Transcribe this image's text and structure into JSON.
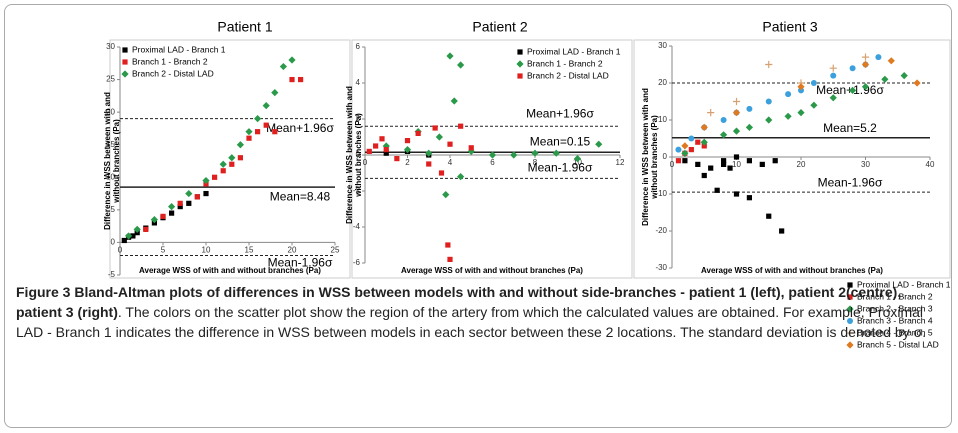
{
  "chart_data": [
    {
      "type": "scatter",
      "title": "Patient 1",
      "x_label": "Average WSS of with and without branches (Pa)",
      "y_label": [
        "Difference in WSS between with and",
        "without branches (Pa)"
      ],
      "xlim": [
        0,
        25
      ],
      "xticks": [
        0,
        5,
        10,
        15,
        20,
        25
      ],
      "ylim": [
        -5,
        30
      ],
      "yticks": [
        -5,
        0,
        5,
        10,
        15,
        20,
        25,
        30
      ],
      "reference_lines": [
        {
          "label": "Mean+1.96σ",
          "value": 19,
          "style": "dashed"
        },
        {
          "label": "Mean=8.48",
          "value": 8.48,
          "style": "solid"
        },
        {
          "label": "Mean-1.96σ",
          "value": -2,
          "style": "dashed"
        }
      ],
      "series": [
        {
          "name": "Proximal LAD - Branch 1",
          "color": "#000000",
          "marker": "square",
          "x": [
            0.5,
            1,
            1.5,
            2,
            3,
            4,
            5,
            6,
            7,
            8,
            9,
            10
          ],
          "values": [
            0.3,
            0.8,
            1,
            1.5,
            2.2,
            3,
            3.8,
            4.5,
            5.5,
            6,
            7,
            7.5
          ]
        },
        {
          "name": "Branch 1 - Branch 2",
          "color": "#e0201f",
          "marker": "square",
          "x": [
            3,
            5,
            7,
            9,
            10,
            11,
            12,
            13,
            14,
            15,
            16,
            17,
            18,
            20,
            21
          ],
          "values": [
            2,
            4,
            6,
            7,
            9,
            10,
            11,
            12,
            13,
            16,
            17,
            18,
            17,
            25,
            25
          ]
        },
        {
          "name": "Branch 2 - Distal LAD",
          "color": "#2a9a4a",
          "marker": "diamond",
          "x": [
            1,
            2,
            4,
            6,
            8,
            10,
            12,
            13,
            14,
            15,
            16,
            17,
            18,
            19,
            20
          ],
          "values": [
            1,
            2,
            3.5,
            5.5,
            7.5,
            9.5,
            12,
            13,
            15,
            17,
            19,
            21,
            23,
            27,
            28
          ]
        }
      ]
    },
    {
      "type": "scatter",
      "title": "Patient 2",
      "x_label": "Average WSS of with and without branches (Pa)",
      "y_label": [
        "Difference in WSS between with and",
        "without branches (Pa)"
      ],
      "xlim": [
        0,
        12
      ],
      "xticks": [
        0,
        2,
        4,
        6,
        8,
        10,
        12
      ],
      "ylim": [
        -6,
        6
      ],
      "yticks": [
        -6,
        -4,
        -2,
        0,
        2,
        4,
        6
      ],
      "reference_lines": [
        {
          "label": "Mean+1.96σ",
          "value": 1.6,
          "style": "dashed"
        },
        {
          "label": "Mean=0.15",
          "value": 0.15,
          "style": "solid"
        },
        {
          "label": "Mean-1.96σ",
          "value": -1.3,
          "style": "dashed"
        }
      ],
      "series": [
        {
          "name": "Proximal LAD - Branch 1",
          "color": "#000000",
          "marker": "square",
          "x": [
            1,
            2,
            3
          ],
          "values": [
            0.1,
            0.2,
            0
          ]
        },
        {
          "name": "Branch 1 - Branch 2",
          "color": "#2a9a4a",
          "marker": "diamond",
          "x": [
            1,
            2,
            3,
            3.5,
            4,
            4.5,
            5,
            6,
            7,
            8,
            9,
            10,
            11,
            3.8,
            4.2,
            4.5,
            2.5
          ],
          "values": [
            0.5,
            0.3,
            0.1,
            1,
            5.5,
            5,
            0.2,
            0,
            0,
            0.1,
            0.1,
            -0.2,
            0.6,
            -2.2,
            3,
            -1.2,
            1.3
          ]
        },
        {
          "name": "Branch 2 - Distal LAD",
          "color": "#e0201f",
          "marker": "square",
          "x": [
            0.2,
            0.5,
            0.8,
            1,
            1.5,
            2,
            2.5,
            3,
            3.3,
            3.6,
            4,
            4.5,
            5,
            3.9,
            4
          ],
          "values": [
            0.2,
            0.5,
            0.9,
            0.3,
            -0.2,
            0.8,
            1.2,
            -0.5,
            1.5,
            -1,
            0.6,
            1.6,
            0.4,
            -5,
            -5.8
          ]
        }
      ]
    },
    {
      "type": "scatter",
      "title": "Patient 3",
      "x_label": "Average WSS of with and without branches (Pa)",
      "y_label": [
        "Difference in WSS between with and",
        "without branches (Pa)"
      ],
      "xlim": [
        0,
        40
      ],
      "xticks": [
        0,
        10,
        20,
        30,
        40
      ],
      "ylim": [
        -30,
        30
      ],
      "yticks": [
        -30,
        -20,
        -10,
        0,
        10,
        20,
        30
      ],
      "reference_lines": [
        {
          "label": "Mean+1.96σ",
          "value": 20,
          "style": "dashed"
        },
        {
          "label": "Mean=5.2",
          "value": 5.2,
          "style": "solid"
        },
        {
          "label": "Mean-1.96σ",
          "value": -9.5,
          "style": "dashed"
        }
      ],
      "series": [
        {
          "name": "Proximal LAD - Branch 1",
          "color": "#000000",
          "marker": "square",
          "x": [
            2,
            4,
            6,
            8,
            10,
            12,
            14,
            16,
            5,
            7,
            10,
            12,
            15,
            17,
            8,
            9
          ],
          "values": [
            -1,
            -2,
            -3,
            -1,
            0,
            -1,
            -2,
            -1,
            -5,
            -9,
            -10,
            -11,
            -16,
            -20,
            -2,
            -3
          ]
        },
        {
          "name": "Branch 1 - Branch 2",
          "color": "#e0201f",
          "marker": "square",
          "x": [
            1,
            2,
            3,
            4,
            5
          ],
          "values": [
            -1,
            1,
            2,
            4,
            3
          ]
        },
        {
          "name": "Branch 2 - Branch 3",
          "color": "#2a9a4a",
          "marker": "diamond",
          "x": [
            2,
            5,
            8,
            10,
            12,
            15,
            18,
            20,
            22,
            25,
            28,
            30,
            33,
            36
          ],
          "values": [
            1,
            4,
            6,
            7,
            8,
            10,
            11,
            12,
            14,
            16,
            18,
            19,
            21,
            22
          ]
        },
        {
          "name": "Branch 3 - Branch 4",
          "color": "#3ba0dc",
          "marker": "circle",
          "x": [
            1,
            3,
            5,
            8,
            10,
            12,
            15,
            18,
            20,
            22,
            25,
            28,
            30,
            32
          ],
          "values": [
            2,
            5,
            8,
            10,
            12,
            13,
            15,
            17,
            18,
            20,
            22,
            24,
            25,
            27
          ]
        },
        {
          "name": "Branch 4 - Branch 5",
          "color": "#d8a070",
          "marker": "plus",
          "x": [
            6,
            10,
            15,
            20,
            25,
            30
          ],
          "values": [
            12,
            15,
            25,
            20,
            24,
            27
          ]
        },
        {
          "name": "Branch 5 - Distal LAD",
          "color": "#e07a20",
          "marker": "diamond",
          "x": [
            2,
            5,
            10,
            20,
            30,
            34,
            38
          ],
          "values": [
            3,
            8,
            12,
            19,
            25,
            26,
            20
          ]
        }
      ]
    }
  ],
  "caption": {
    "label": "Figure 3",
    "title": "Bland-Altman plots of differences in WSS between models with and without side-branches - patient 1 (left), patient 2(centre), patient 3 (right)",
    "text": ". The colors on the scatter plot show the region of the artery from which the calculated values are obtained. For example, Proximal LAD - Branch 1 indicates the difference in WSS between models in each sector between these 2 locations. The standard deviation is denoted by σ."
  }
}
